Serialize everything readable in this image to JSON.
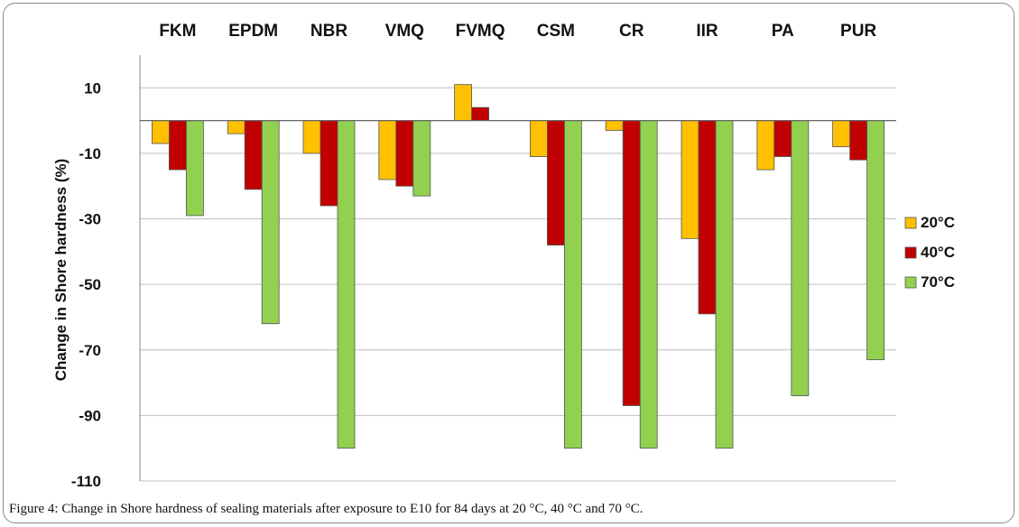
{
  "caption": "Figure 4: Change in Shore hardness of sealing materials after exposure to E10 for 84 days at 20 °C, 40 °C and 70 °C.",
  "colors": {
    "20°C": "#ffc000",
    "40°C": "#c00000",
    "70°C": "#92d050",
    "grid": "#c0c0c0",
    "bar_outline": "#555555"
  },
  "chart_data": {
    "type": "bar",
    "categories": [
      "FKM",
      "EPDM",
      "NBR",
      "VMQ",
      "FVMQ",
      "CSM",
      "CR",
      "IIR",
      "PA",
      "PUR"
    ],
    "category_axis_position": "top",
    "series": [
      {
        "name": "20°C",
        "values": [
          -7,
          -4,
          -10,
          -18,
          11,
          null,
          -3,
          -36,
          -15,
          -8
        ]
      },
      {
        "name": "40°C",
        "values": [
          -15,
          -21,
          -26,
          -20,
          4,
          -38,
          -87,
          -59,
          -11,
          -12
        ]
      },
      {
        "name": "70°C",
        "values": [
          -29,
          -62,
          -100,
          -23,
          null,
          -100,
          -100,
          -100,
          -84,
          -73
        ]
      }
    ],
    "series_patch": {
      "20°C": {
        "CSM": -11
      }
    },
    "ylabel": "Change in Shore hardness (%)",
    "xlabel": "",
    "yticks": [
      10,
      -10,
      -30,
      -50,
      -70,
      -90,
      -110
    ],
    "ylim": [
      -110,
      20
    ],
    "grid": true,
    "legend_position": "right"
  }
}
